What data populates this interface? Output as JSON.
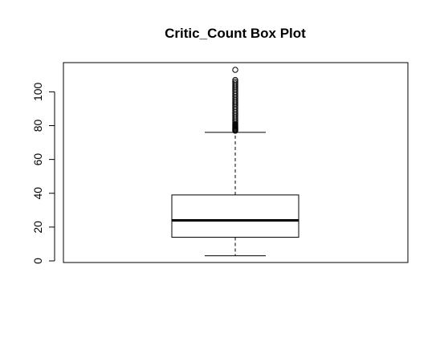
{
  "chart_data": {
    "type": "box",
    "title": "Critic_Count Box Plot",
    "xlabel": "",
    "ylabel": "",
    "ylim": [
      0,
      115
    ],
    "yticks": [
      0,
      20,
      40,
      60,
      80,
      100
    ],
    "grid": false,
    "box": {
      "min": 3,
      "q1": 14,
      "median": 24,
      "q3": 39,
      "max": 76
    },
    "outliers": [
      77,
      77.5,
      78,
      78.5,
      79,
      79.5,
      80,
      80.5,
      81,
      82,
      83,
      84,
      85,
      86,
      87,
      88,
      89,
      90,
      91,
      92,
      93,
      94,
      95,
      96,
      97,
      98,
      99,
      100,
      101,
      102,
      103,
      104,
      105,
      106,
      107,
      113
    ]
  }
}
